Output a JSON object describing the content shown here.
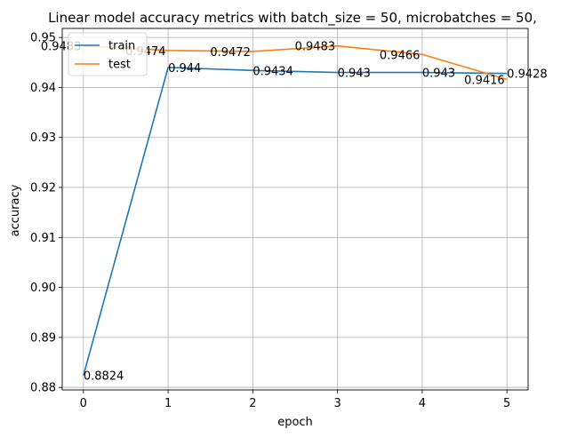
{
  "chart_data": {
    "type": "line",
    "title": "Linear model accuracy metrics with batch_size = 50, microbatches = 50,",
    "xlabel": "epoch",
    "ylabel": "accuracy",
    "x": [
      0,
      1,
      2,
      3,
      4,
      5
    ],
    "xticks": [
      "0",
      "1",
      "2",
      "3",
      "4",
      "5"
    ],
    "yticks": [
      "0.88",
      "0.89",
      "0.90",
      "0.91",
      "0.92",
      "0.93",
      "0.94",
      "0.95"
    ],
    "xlim": [
      -0.25,
      5.25
    ],
    "ylim": [
      0.8795,
      0.9518
    ],
    "grid": true,
    "legend_position": "top-left",
    "series": [
      {
        "name": "train",
        "color": "#1f77b4",
        "values": [
          0.8824,
          0.944,
          0.9434,
          0.943,
          0.943,
          0.9428
        ],
        "labels": [
          "0.8824",
          "0.944",
          "0.9434",
          "0.943",
          "0.943",
          "0.9428"
        ]
      },
      {
        "name": "test",
        "color": "#ff7f0e",
        "values": [
          0.9483,
          0.9474,
          0.9472,
          0.9483,
          0.9466,
          0.9416
        ],
        "labels": [
          "0.9483",
          "0.9474",
          "0.9472",
          "0.9483",
          "0.9466",
          "0.9416"
        ]
      }
    ]
  }
}
